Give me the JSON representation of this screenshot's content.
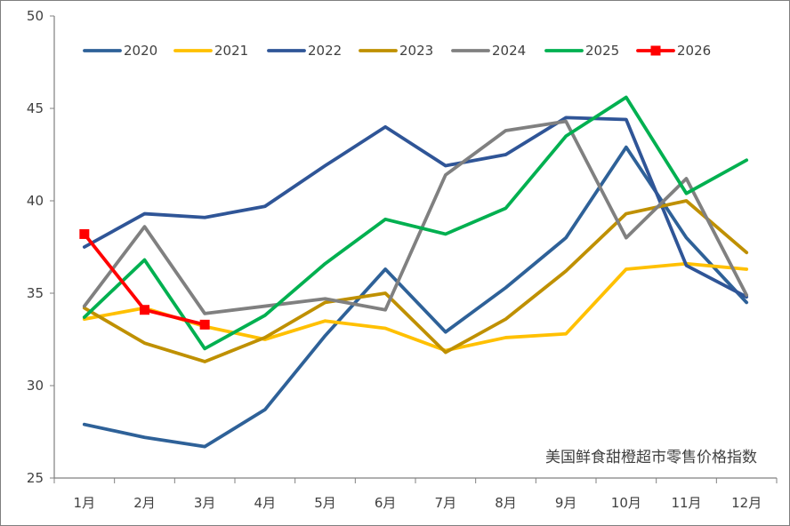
{
  "chart_data": {
    "type": "line",
    "title": "",
    "xlabel": "",
    "ylabel": "",
    "categories": [
      "1月",
      "2月",
      "3月",
      "4月",
      "5月",
      "6月",
      "7月",
      "8月",
      "9月",
      "10月",
      "11月",
      "12月"
    ],
    "ylim": [
      25,
      50
    ],
    "yticks": [
      25,
      30,
      35,
      40,
      45,
      50
    ],
    "grid": false,
    "legend_position": "top",
    "annotation": "美国鲜食甜橙超市零售价格指数",
    "series": [
      {
        "name": "2020",
        "color": "#2E6198",
        "marker": "none",
        "values": [
          27.9,
          27.2,
          26.7,
          28.7,
          32.7,
          36.3,
          32.9,
          35.3,
          38.0,
          42.9,
          38.0,
          34.5
        ]
      },
      {
        "name": "2021",
        "color": "#FFC000",
        "marker": "none",
        "values": [
          33.6,
          34.2,
          33.2,
          32.5,
          33.5,
          33.1,
          31.9,
          32.6,
          32.8,
          36.3,
          36.6,
          36.3
        ]
      },
      {
        "name": "2022",
        "color": "#2F5597",
        "marker": "none",
        "values": [
          37.5,
          39.3,
          39.1,
          39.7,
          41.9,
          44.0,
          41.9,
          42.5,
          44.5,
          44.4,
          36.5,
          34.8
        ]
      },
      {
        "name": "2023",
        "color": "#BF9000",
        "marker": "none",
        "values": [
          34.2,
          32.3,
          31.3,
          32.6,
          34.5,
          35.0,
          31.8,
          33.6,
          36.2,
          39.3,
          40.0,
          37.2
        ]
      },
      {
        "name": "2024",
        "color": "#808080",
        "marker": "none",
        "values": [
          34.3,
          38.6,
          33.9,
          34.3,
          34.7,
          34.1,
          41.4,
          43.8,
          44.3,
          38.0,
          41.2,
          34.9
        ]
      },
      {
        "name": "2025",
        "color": "#00B050",
        "marker": "none",
        "values": [
          33.7,
          36.8,
          32.0,
          33.8,
          36.6,
          39.0,
          38.2,
          39.6,
          43.5,
          45.6,
          40.4,
          42.2
        ]
      },
      {
        "name": "2026",
        "color": "#FF0000",
        "marker": "square",
        "values": [
          38.2,
          34.1,
          33.3,
          null,
          null,
          null,
          null,
          null,
          null,
          null,
          null,
          null
        ]
      }
    ]
  }
}
